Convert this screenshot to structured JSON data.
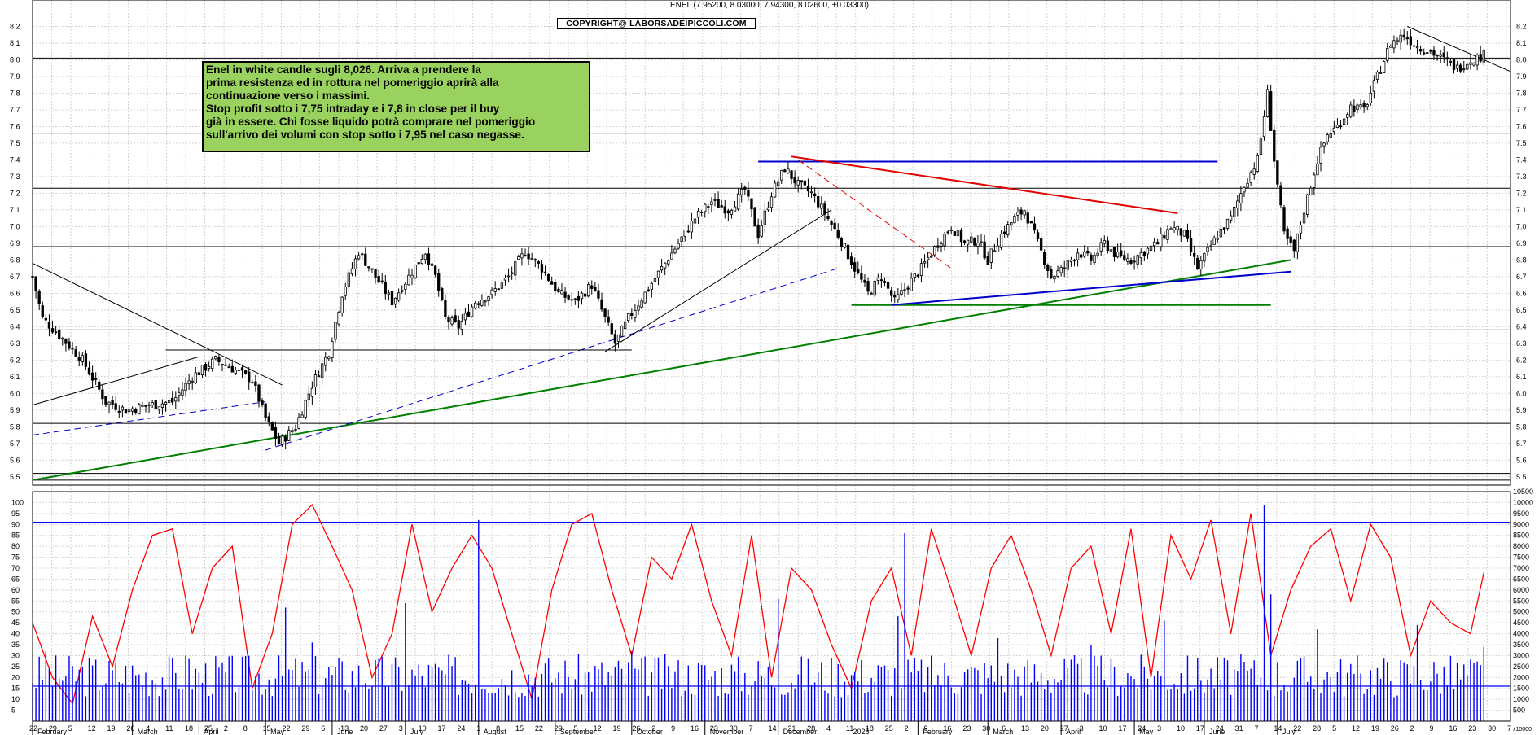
{
  "header": {
    "quote": "ENEL (7.95200, 8.03000, 7.94300, 8.02600, +0.03300)",
    "copyright": "COPYRIGHT@ LABORSADEIPICCOLI.COM"
  },
  "annotation": {
    "lines": [
      "Enel in white candle sugli 8,026. Arriva a prendere la",
      "prima resistenza ed in rottura nel pomeriggio aprirà alla",
      "continuazione verso i massimi.",
      "Stop profit sotto i 7,75 intraday e i 7,8 in close per il buy",
      "già in essere. Chi fosse liquido potrà comprare nel pomeriggio",
      "sull'arrivo dei volumi con stop sotto i 7,95 nel caso negasse."
    ]
  },
  "colors": {
    "grid": "#d3d3d3",
    "candle_outline": "#000000",
    "trend_black": "#000000",
    "trend_green": "#008000",
    "trend_blue": "#0000cc",
    "trend_red": "#e00000",
    "oscillator": "#ff0000",
    "volume": "#0000ff",
    "annotation_bg": "#9ad25f"
  },
  "chart_data": [
    {
      "type": "candlestick",
      "symbol": "ENEL",
      "last": {
        "open": 7.952,
        "high": 8.03,
        "low": 7.943,
        "close": 8.026,
        "change": 0.033
      },
      "ylim": [
        5.45,
        8.3
      ],
      "y_ticks": [
        "5.5",
        "5.6",
        "5.7",
        "5.8",
        "5.9",
        "6.0",
        "6.1",
        "6.2",
        "6.3",
        "6.4",
        "6.5",
        "6.6",
        "6.7",
        "6.8",
        "6.9",
        "7.0",
        "7.1",
        "7.2",
        "7.3",
        "7.4",
        "7.5",
        "7.6",
        "7.7",
        "7.8",
        "7.9",
        "8.0",
        "8.1",
        "8.2"
      ],
      "horizontal_levels": [
        5.48,
        5.52,
        5.82,
        6.38,
        6.88,
        7.23,
        7.56,
        8.01
      ],
      "close_path": [
        [
          0,
          6.7
        ],
        [
          3,
          6.45
        ],
        [
          8,
          6.35
        ],
        [
          15,
          6.2
        ],
        [
          22,
          5.95
        ],
        [
          28,
          5.9
        ],
        [
          35,
          5.93
        ],
        [
          42,
          5.95
        ],
        [
          48,
          6.1
        ],
        [
          55,
          6.2
        ],
        [
          60,
          6.15
        ],
        [
          66,
          6.08
        ],
        [
          70,
          5.85
        ],
        [
          74,
          5.7
        ],
        [
          79,
          5.8
        ],
        [
          84,
          6.05
        ],
        [
          89,
          6.25
        ],
        [
          93,
          6.6
        ],
        [
          98,
          6.85
        ],
        [
          103,
          6.7
        ],
        [
          108,
          6.55
        ],
        [
          113,
          6.7
        ],
        [
          118,
          6.85
        ],
        [
          121,
          6.7
        ],
        [
          124,
          6.45
        ],
        [
          128,
          6.4
        ],
        [
          133,
          6.55
        ],
        [
          138,
          6.6
        ],
        [
          143,
          6.7
        ],
        [
          148,
          6.85
        ],
        [
          153,
          6.75
        ],
        [
          158,
          6.6
        ],
        [
          163,
          6.55
        ],
        [
          168,
          6.65
        ],
        [
          172,
          6.45
        ],
        [
          175,
          6.3
        ],
        [
          179,
          6.45
        ],
        [
          184,
          6.6
        ],
        [
          189,
          6.75
        ],
        [
          194,
          6.9
        ],
        [
          199,
          7.05
        ],
        [
          204,
          7.15
        ],
        [
          209,
          7.1
        ],
        [
          214,
          7.22
        ],
        [
          218,
          6.95
        ],
        [
          222,
          7.2
        ],
        [
          226,
          7.35
        ],
        [
          230,
          7.25
        ],
        [
          234,
          7.2
        ],
        [
          238,
          7.08
        ],
        [
          242,
          6.95
        ],
        [
          247,
          6.75
        ],
        [
          251,
          6.6
        ],
        [
          255,
          6.7
        ],
        [
          259,
          6.55
        ],
        [
          263,
          6.65
        ],
        [
          267,
          6.75
        ],
        [
          272,
          6.9
        ],
        [
          276,
          7.0
        ],
        [
          280,
          6.9
        ],
        [
          284,
          6.92
        ],
        [
          287,
          6.8
        ],
        [
          291,
          6.95
        ],
        [
          295,
          7.05
        ],
        [
          298,
          7.1
        ],
        [
          302,
          6.9
        ],
        [
          306,
          6.7
        ],
        [
          310,
          6.75
        ],
        [
          314,
          6.85
        ],
        [
          318,
          6.8
        ],
        [
          322,
          6.9
        ],
        [
          326,
          6.82
        ],
        [
          330,
          6.8
        ],
        [
          334,
          6.85
        ],
        [
          338,
          6.9
        ],
        [
          342,
          7.0
        ],
        [
          346,
          6.95
        ],
        [
          350,
          6.75
        ],
        [
          353,
          6.85
        ],
        [
          356,
          6.95
        ],
        [
          360,
          7.05
        ],
        [
          364,
          7.25
        ],
        [
          368,
          7.4
        ],
        [
          371,
          7.8
        ],
        [
          373,
          7.4
        ],
        [
          376,
          6.95
        ],
        [
          379,
          6.85
        ],
        [
          382,
          7.1
        ],
        [
          386,
          7.4
        ],
        [
          389,
          7.55
        ],
        [
          392,
          7.6
        ],
        [
          396,
          7.72
        ],
        [
          400,
          7.7
        ],
        [
          404,
          7.9
        ],
        [
          408,
          8.1
        ],
        [
          412,
          8.15
        ],
        [
          416,
          8.08
        ],
        [
          420,
          8.05
        ],
        [
          424,
          8.0
        ],
        [
          428,
          7.95
        ],
        [
          432,
          8.0
        ],
        [
          436,
          8.026
        ]
      ],
      "trendlines": [
        {
          "color": "black",
          "from": [
            0,
            6.78
          ],
          "to": [
            75,
            6.05
          ]
        },
        {
          "color": "black",
          "from": [
            0,
            5.93
          ],
          "to": [
            50,
            6.22
          ]
        },
        {
          "color": "black",
          "from": [
            172,
            6.25
          ],
          "to": [
            240,
            7.1
          ]
        },
        {
          "color": "black",
          "from": [
            413,
            8.2
          ],
          "to": [
            444,
            7.93
          ]
        },
        {
          "color": "green",
          "from": [
            0,
            5.48
          ],
          "to": [
            378,
            6.8
          ]
        },
        {
          "color": "green",
          "from": [
            246,
            6.53
          ],
          "to": [
            372,
            6.53
          ]
        },
        {
          "color": "blue",
          "from": [
            218,
            7.39
          ],
          "to": [
            356,
            7.39
          ]
        },
        {
          "color": "blue",
          "from": [
            258,
            6.53
          ],
          "to": [
            378,
            6.73
          ]
        },
        {
          "color": "blue-dashed",
          "from": [
            0,
            5.75
          ],
          "to": [
            70,
            5.95
          ]
        },
        {
          "color": "blue-dashed",
          "from": [
            70,
            5.66
          ],
          "to": [
            242,
            6.75
          ]
        },
        {
          "color": "red",
          "from": [
            228,
            7.42
          ],
          "to": [
            344,
            7.08
          ]
        },
        {
          "color": "red-dashed",
          "from": [
            230,
            7.4
          ],
          "to": [
            276,
            6.75
          ]
        },
        {
          "color": "black",
          "from": [
            40,
            6.26
          ],
          "to": [
            180,
            6.26
          ]
        }
      ]
    },
    {
      "type": "line",
      "name": "oscillator",
      "ylim": [
        0,
        105
      ],
      "y_ticks": [
        "5",
        "10",
        "15",
        "20",
        "25",
        "30",
        "35",
        "40",
        "45",
        "50",
        "55",
        "60",
        "65",
        "70",
        "75",
        "80",
        "85",
        "90",
        "95",
        "100"
      ],
      "reference_line": 91,
      "x": [
        0,
        6,
        12,
        18,
        24,
        30,
        36,
        42,
        48,
        54,
        60,
        66,
        72,
        78,
        84,
        90,
        96,
        102,
        108,
        114,
        120,
        126,
        132,
        138,
        144,
        150,
        156,
        162,
        168,
        174,
        180,
        186,
        192,
        198,
        204,
        210,
        216,
        222,
        228,
        234,
        240,
        246,
        252,
        258,
        264,
        270,
        276,
        282,
        288,
        294,
        300,
        306,
        312,
        318,
        324,
        330,
        336,
        342,
        348,
        354,
        360,
        366,
        372,
        378,
        384,
        390,
        396,
        402,
        408,
        414,
        420,
        426,
        432,
        436
      ],
      "values": [
        45,
        20,
        8,
        48,
        25,
        60,
        85,
        88,
        40,
        70,
        80,
        15,
        40,
        90,
        99,
        80,
        60,
        20,
        40,
        90,
        50,
        70,
        85,
        70,
        40,
        10,
        60,
        90,
        95,
        60,
        30,
        75,
        65,
        90,
        55,
        30,
        85,
        20,
        70,
        60,
        35,
        15,
        55,
        70,
        30,
        88,
        60,
        30,
        70,
        85,
        60,
        30,
        70,
        80,
        40,
        88,
        20,
        85,
        65,
        92,
        40,
        95,
        30,
        60,
        80,
        88,
        55,
        90,
        75,
        30,
        55,
        45,
        40,
        68
      ]
    },
    {
      "type": "bar",
      "name": "volume",
      "ylim": [
        0,
        10500
      ],
      "y_ticks": [
        "500",
        "1000",
        "1500",
        "2000",
        "2500",
        "3000",
        "3500",
        "4000",
        "4500",
        "5000",
        "5500",
        "6000",
        "6500",
        "7000",
        "7500",
        "8000",
        "8500",
        "9000",
        "9500",
        "10000",
        "10500"
      ],
      "reference_line": 1600,
      "x_range": [
        0,
        436
      ],
      "typical": 2200,
      "spikes": [
        [
          4,
          3200
        ],
        [
          46,
          3000
        ],
        [
          76,
          5200
        ],
        [
          84,
          3600
        ],
        [
          112,
          5400
        ],
        [
          134,
          9200
        ],
        [
          180,
          3200
        ],
        [
          224,
          5600
        ],
        [
          260,
          4800
        ],
        [
          262,
          8600
        ],
        [
          290,
          3800
        ],
        [
          318,
          3500
        ],
        [
          340,
          4600
        ],
        [
          370,
          9900
        ],
        [
          372,
          5800
        ],
        [
          386,
          4200
        ],
        [
          416,
          4400
        ],
        [
          436,
          3400
        ]
      ]
    }
  ],
  "x_axis": {
    "day_labels": [
      "22",
      "29",
      "5",
      "12",
      "19",
      "26",
      "4",
      "11",
      "18",
      "25",
      "2",
      "8",
      "15",
      "22",
      "29",
      "6",
      "13",
      "20",
      "27",
      "3",
      "10",
      "17",
      "24",
      "1",
      "8",
      "15",
      "22",
      "29",
      "5",
      "12",
      "19",
      "26",
      "2",
      "9",
      "16",
      "23",
      "30",
      "7",
      "14",
      "21",
      "28",
      "4",
      "11",
      "18",
      "25",
      "2",
      "9",
      "16",
      "23",
      "30",
      "6",
      "13",
      "20",
      "27",
      "3",
      "10",
      "17",
      "24",
      "3",
      "10",
      "17",
      "24",
      "31",
      "7",
      "14",
      "22",
      "28",
      "5",
      "12",
      "19",
      "26",
      "2",
      "9",
      "16",
      "23",
      "30",
      "7"
    ],
    "months": [
      {
        "label": "February",
        "i": 0
      },
      {
        "label": "March",
        "i": 30
      },
      {
        "label": "April",
        "i": 50
      },
      {
        "label": "May",
        "i": 70
      },
      {
        "label": "June",
        "i": 90
      },
      {
        "label": "July",
        "i": 112
      },
      {
        "label": "August",
        "i": 134
      },
      {
        "label": "September",
        "i": 157
      },
      {
        "label": "October",
        "i": 180
      },
      {
        "label": "November",
        "i": 202
      },
      {
        "label": "December",
        "i": 224
      },
      {
        "label": "2025",
        "i": 245
      },
      {
        "label": "February",
        "i": 266
      },
      {
        "label": "March",
        "i": 287
      },
      {
        "label": "April",
        "i": 309
      },
      {
        "label": "May",
        "i": 331
      },
      {
        "label": "June",
        "i": 352
      },
      {
        "label": "July",
        "i": 374
      }
    ],
    "corner_label": "x10000"
  }
}
